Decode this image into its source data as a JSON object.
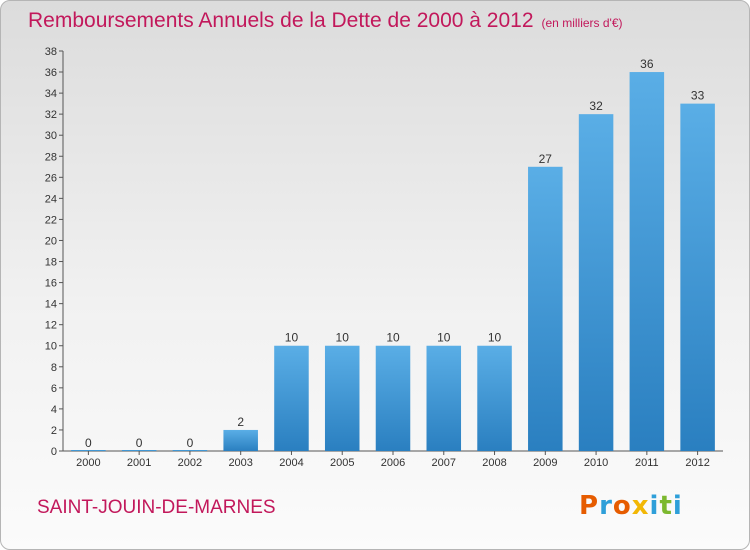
{
  "chart_data": {
    "type": "bar",
    "title": "Remboursements Annuels de la Dette de 2000 à 2012",
    "unit_label": "(en milliers d'€)",
    "categories": [
      "2000",
      "2001",
      "2002",
      "2003",
      "2004",
      "2005",
      "2006",
      "2007",
      "2008",
      "2009",
      "2010",
      "2011",
      "2012"
    ],
    "values": [
      0,
      0,
      0,
      2,
      10,
      10,
      10,
      10,
      10,
      27,
      32,
      36,
      33
    ],
    "ylim": [
      0,
      38
    ],
    "yticks": [
      0,
      2,
      4,
      6,
      8,
      10,
      12,
      14,
      16,
      18,
      20,
      22,
      24,
      26,
      28,
      30,
      32,
      34,
      36,
      38
    ],
    "grid": false,
    "xlabel": "",
    "ylabel": ""
  },
  "commune": "SAINT-JOUIN-DE-MARNES",
  "logo": {
    "letters": [
      "P",
      "r",
      "o",
      "x",
      "i",
      "t",
      "i"
    ],
    "colors": [
      "#e65c00",
      "#2e9fd9",
      "#e65c00",
      "#f2b705",
      "#2e9fd9",
      "#7cb82f",
      "#2e9fd9"
    ]
  },
  "colors": {
    "bar_top": "#5aaee6",
    "bar_bottom": "#2a7fc0",
    "title": "#c2185b",
    "axis": "#555555"
  }
}
